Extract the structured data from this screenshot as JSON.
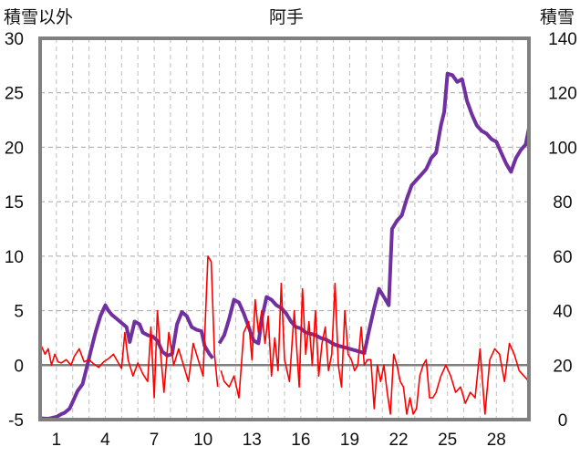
{
  "chart_data": {
    "type": "line",
    "title": "阿手",
    "left_axis_label": "積雪以外",
    "right_axis_label": "積雪",
    "left_ticks": [
      "-5",
      "0",
      "5",
      "10",
      "15",
      "20",
      "25",
      "30"
    ],
    "right_ticks": [
      "0",
      "20",
      "40",
      "60",
      "80",
      "100",
      "120",
      "140"
    ],
    "x_ticks": [
      "1",
      "4",
      "7",
      "10",
      "13",
      "16",
      "19",
      "22",
      "25",
      "28"
    ],
    "ylim_left": [
      -5,
      30
    ],
    "ylim_right": [
      0,
      140
    ],
    "xlim": [
      0,
      30
    ],
    "grid": true,
    "colors": {
      "snow": "#7030a0",
      "other": "#ff0000",
      "zero_line": "#7f7f7f",
      "frame": "#808080"
    },
    "series": [
      {
        "axis": "right",
        "x": [
          0.0,
          0.5,
          1.0,
          1.3,
          1.5,
          1.8,
          2.0,
          2.3,
          2.6,
          2.9,
          3.1,
          3.4,
          3.7,
          4.0,
          4.2,
          4.4,
          4.7,
          5.0,
          5.3,
          5.5,
          5.8,
          6.1,
          6.3,
          6.6,
          6.9,
          7.2,
          7.5,
          7.8,
          8.1,
          8.4,
          8.7,
          9.0,
          9.3,
          9.6,
          9.9,
          10.1,
          10.4,
          10.6,
          null,
          11.0,
          11.3,
          11.6,
          11.9,
          12.2,
          12.5,
          12.8,
          13.1,
          13.4,
          13.6,
          13.9,
          14.2,
          14.5,
          14.8,
          15.1,
          15.4,
          15.7,
          16.0,
          16.3,
          16.6,
          16.9,
          17.2,
          17.5,
          17.8,
          18.1,
          18.4,
          18.7,
          19.0,
          19.3,
          19.6,
          19.9,
          20.2,
          20.5,
          20.8,
          21.1,
          21.4,
          21.6,
          21.9,
          22.2,
          22.5,
          22.8,
          23.1,
          23.4,
          23.7,
          24.0,
          24.3,
          24.6,
          24.8,
          25.0,
          25.3,
          25.6,
          25.9,
          26.2,
          26.5,
          26.8,
          27.1,
          27.4,
          27.7,
          28.0,
          28.3,
          28.6,
          28.9,
          29.2,
          29.5,
          29.8,
          30.0
        ],
        "values": [
          0.5,
          0.3,
          1.0,
          2.0,
          2.5,
          4.0,
          6.5,
          10.5,
          13.0,
          20.0,
          25.0,
          32.0,
          38.0,
          42.0,
          40.0,
          38.5,
          37.0,
          35.5,
          34.0,
          28.5,
          36.0,
          35.0,
          32.0,
          31.0,
          30.5,
          29.0,
          25.0,
          23.5,
          24.0,
          35.0,
          39.5,
          38.0,
          34.0,
          33.0,
          32.5,
          27.0,
          24.0,
          22.5,
          null,
          28.0,
          31.0,
          37.0,
          44.0,
          43.0,
          39.0,
          34.0,
          29.0,
          28.0,
          37.0,
          45.0,
          44.0,
          42.0,
          41.0,
          39.0,
          36.0,
          34.0,
          33.5,
          32.0,
          31.5,
          31.0,
          30.0,
          29.5,
          28.5,
          27.5,
          27.0,
          26.5,
          26.0,
          25.5,
          25.0,
          24.5,
          33.0,
          41.0,
          48.0,
          45.0,
          42.0,
          70.0,
          73.0,
          75.0,
          81.0,
          86.0,
          88.0,
          90.0,
          92.0,
          96.0,
          98.0,
          108.0,
          113.0,
          127.0,
          126.5,
          124.0,
          125.0,
          117.0,
          112.0,
          108.0,
          106.0,
          105.0,
          103.0,
          102.0,
          98.0,
          94.0,
          91.0,
          96.0,
          99.0,
          101.0,
          107.0
        ]
      },
      {
        "axis": "left",
        "x": [
          0.0,
          0.3,
          0.5,
          0.7,
          0.9,
          1.1,
          1.3,
          1.6,
          1.9,
          2.1,
          2.4,
          2.7,
          3.0,
          3.3,
          3.6,
          3.9,
          4.2,
          4.5,
          4.8,
          5.0,
          5.2,
          5.4,
          5.7,
          6.0,
          6.3,
          6.6,
          6.8,
          7.0,
          7.2,
          7.4,
          7.6,
          7.9,
          8.2,
          8.5,
          8.8,
          9.1,
          9.4,
          9.7,
          10.0,
          10.3,
          10.5,
          10.7,
          10.9,
          null,
          11.1,
          11.3,
          11.6,
          11.9,
          12.2,
          12.5,
          12.8,
          13.0,
          13.2,
          13.4,
          13.6,
          13.8,
          14.0,
          14.2,
          14.4,
          14.6,
          14.8,
          15.0,
          15.3,
          15.6,
          15.9,
          16.1,
          16.3,
          16.5,
          16.7,
          16.9,
          17.1,
          17.3,
          17.5,
          17.7,
          17.9,
          18.1,
          18.3,
          18.5,
          18.7,
          18.9,
          19.1,
          19.3,
          19.5,
          19.7,
          19.9,
          20.1,
          20.3,
          20.5,
          20.7,
          20.9,
          21.1,
          21.3,
          21.5,
          21.7,
          21.9,
          22.1,
          22.3,
          22.5,
          22.7,
          22.9,
          23.1,
          23.3,
          23.5,
          23.7,
          23.9,
          24.1,
          24.3,
          24.6,
          24.9,
          25.2,
          25.5,
          25.8,
          26.1,
          26.4,
          26.7,
          27.0,
          27.3,
          27.6,
          27.9,
          28.2,
          28.5,
          28.8,
          29.1,
          29.4,
          29.7,
          30.0
        ],
        "values": [
          2.0,
          1.0,
          1.5,
          0.0,
          1.0,
          0.3,
          0.2,
          0.5,
          0.0,
          0.8,
          1.5,
          0.3,
          0.5,
          0.1,
          -0.2,
          0.3,
          0.6,
          1.0,
          0.2,
          -0.3,
          3.0,
          0.5,
          -1.0,
          0.2,
          -0.8,
          -1.5,
          3.5,
          -3.0,
          5.0,
          1.0,
          -2.5,
          3.0,
          0.0,
          1.5,
          0.0,
          -1.5,
          2.0,
          0.5,
          -1.0,
          10.0,
          9.5,
          1.0,
          -2.0,
          null,
          -0.5,
          -1.5,
          -2.0,
          -1.0,
          -3.0,
          3.0,
          4.0,
          0.5,
          6.0,
          3.0,
          5.0,
          2.0,
          4.5,
          -1.0,
          2.5,
          -0.5,
          7.5,
          0.5,
          -1.5,
          5.0,
          -2.0,
          7.0,
          1.0,
          4.0,
          0.0,
          5.0,
          -1.0,
          2.0,
          3.5,
          -0.5,
          1.0,
          7.5,
          0.0,
          -2.0,
          5.0,
          1.0,
          0.5,
          -0.5,
          0.0,
          3.5,
          0.0,
          0.5,
          0.5,
          -4.0,
          0.0,
          -1.5,
          0.0,
          -2.5,
          -4.5,
          1.0,
          0.0,
          -1.5,
          -2.0,
          -4.5,
          -3.0,
          -4.5,
          -4.0,
          -1.0,
          0.0,
          0.5,
          -3.0,
          -3.0,
          -2.5,
          -1.0,
          0.0,
          -1.0,
          -2.5,
          -2.0,
          -3.5,
          -2.5,
          -3.0,
          1.5,
          -4.5,
          0.5,
          1.5,
          1.0,
          -1.5,
          2.0,
          1.0,
          -0.5,
          -1.0,
          -1.5
        ]
      }
    ]
  }
}
